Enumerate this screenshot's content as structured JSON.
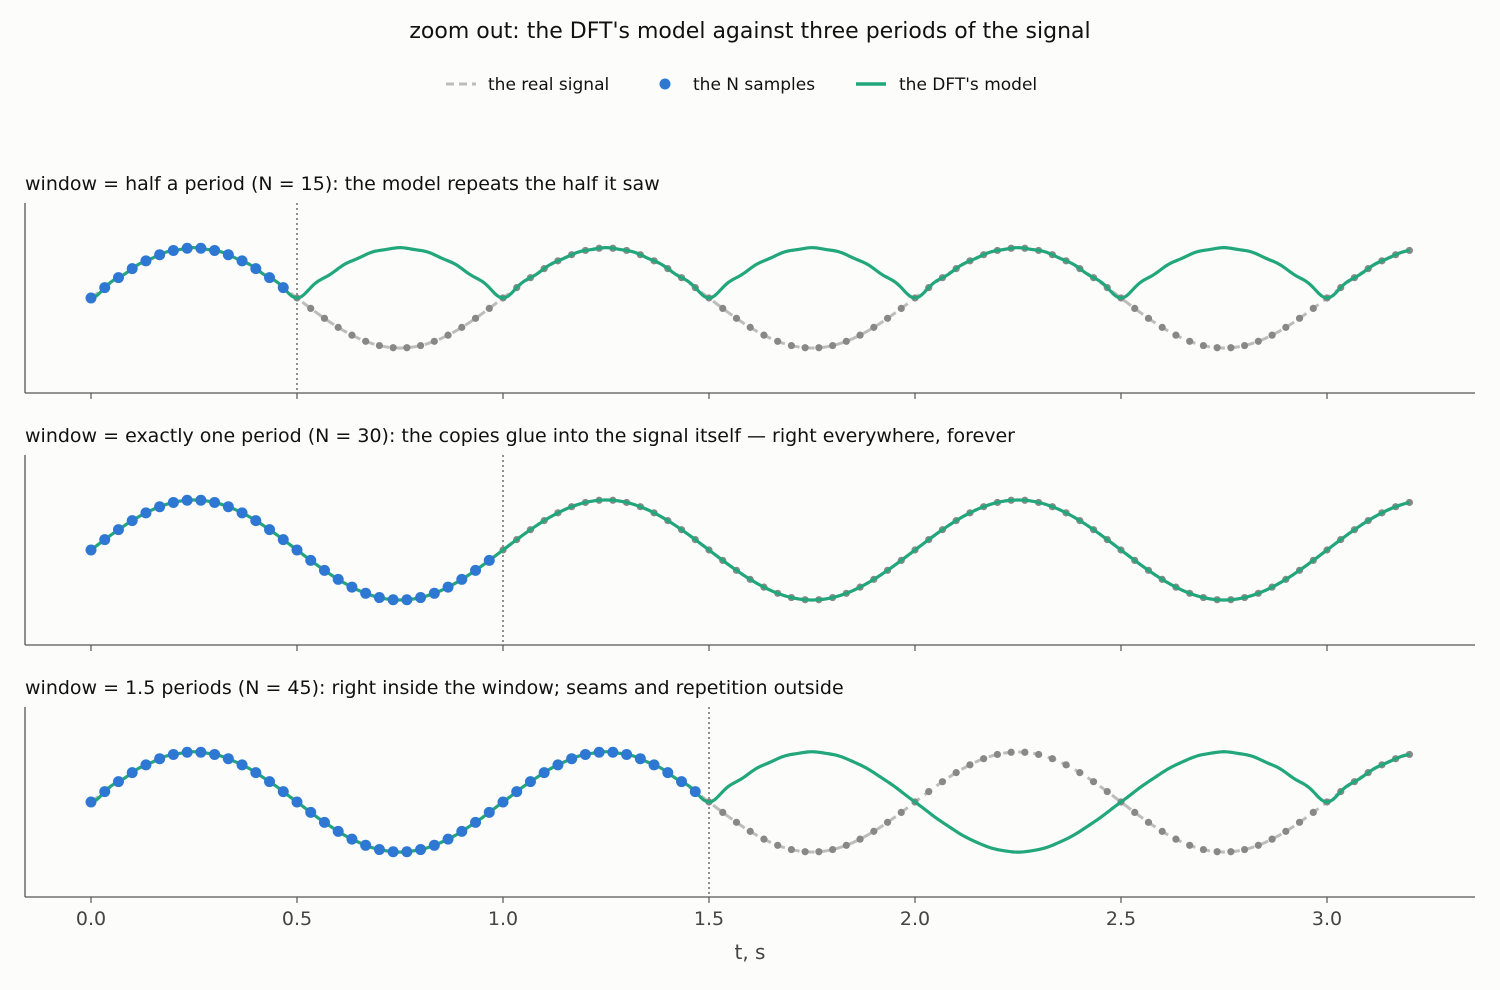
{
  "figure": {
    "title": "zoom out: the DFT's model against three periods of the signal",
    "legend": {
      "placement": "top-center",
      "items": [
        {
          "key": "signal",
          "label": "the real signal",
          "color": "#bdbdbd",
          "style": "dashed"
        },
        {
          "key": "samples",
          "label": "the N samples",
          "color": "#2e78d4",
          "style": "marker"
        },
        {
          "key": "model",
          "label": "the DFT's model",
          "color": "#22a67c",
          "style": "solid"
        }
      ]
    }
  },
  "chart_data": [
    {
      "type": "line",
      "title": "window = half a period (N = 15):  the model repeats the half it saw",
      "signal": "sin(2πt), period 1 s",
      "sample_rate_hz": 30,
      "N": 15,
      "window_end": 0.5,
      "x_range": [
        0,
        3.2
      ],
      "xlim": [
        -0.16,
        3.36
      ],
      "ylim": [
        -1.9,
        1.9
      ],
      "grid": false
    },
    {
      "type": "line",
      "title": "window = exactly one period (N = 30):  the copies glue into the signal itself — right everywhere, forever",
      "signal": "sin(2πt), period 1 s",
      "sample_rate_hz": 30,
      "N": 30,
      "window_end": 1.0,
      "x_range": [
        0,
        3.2
      ],
      "xlim": [
        -0.16,
        3.36
      ],
      "ylim": [
        -1.9,
        1.9
      ],
      "grid": false
    },
    {
      "type": "line",
      "title": "window = 1.5 periods (N = 45):  right inside the window; seams and repetition outside",
      "signal": "sin(2πt), period 1 s",
      "sample_rate_hz": 30,
      "N": 45,
      "window_end": 1.5,
      "x_range": [
        0,
        3.2
      ],
      "xlim": [
        -0.16,
        3.36
      ],
      "ylim": [
        -1.9,
        1.9
      ],
      "grid": false,
      "xlabel": "t, s",
      "xticks": [
        "0.0",
        "0.5",
        "1.0",
        "1.5",
        "2.0",
        "2.5",
        "3.0"
      ]
    }
  ],
  "colors": {
    "signal": "#bdbdbd",
    "samples": "#2e78d4",
    "model": "#22a67c",
    "outside_samples": "#888888",
    "axis": "#555555"
  }
}
